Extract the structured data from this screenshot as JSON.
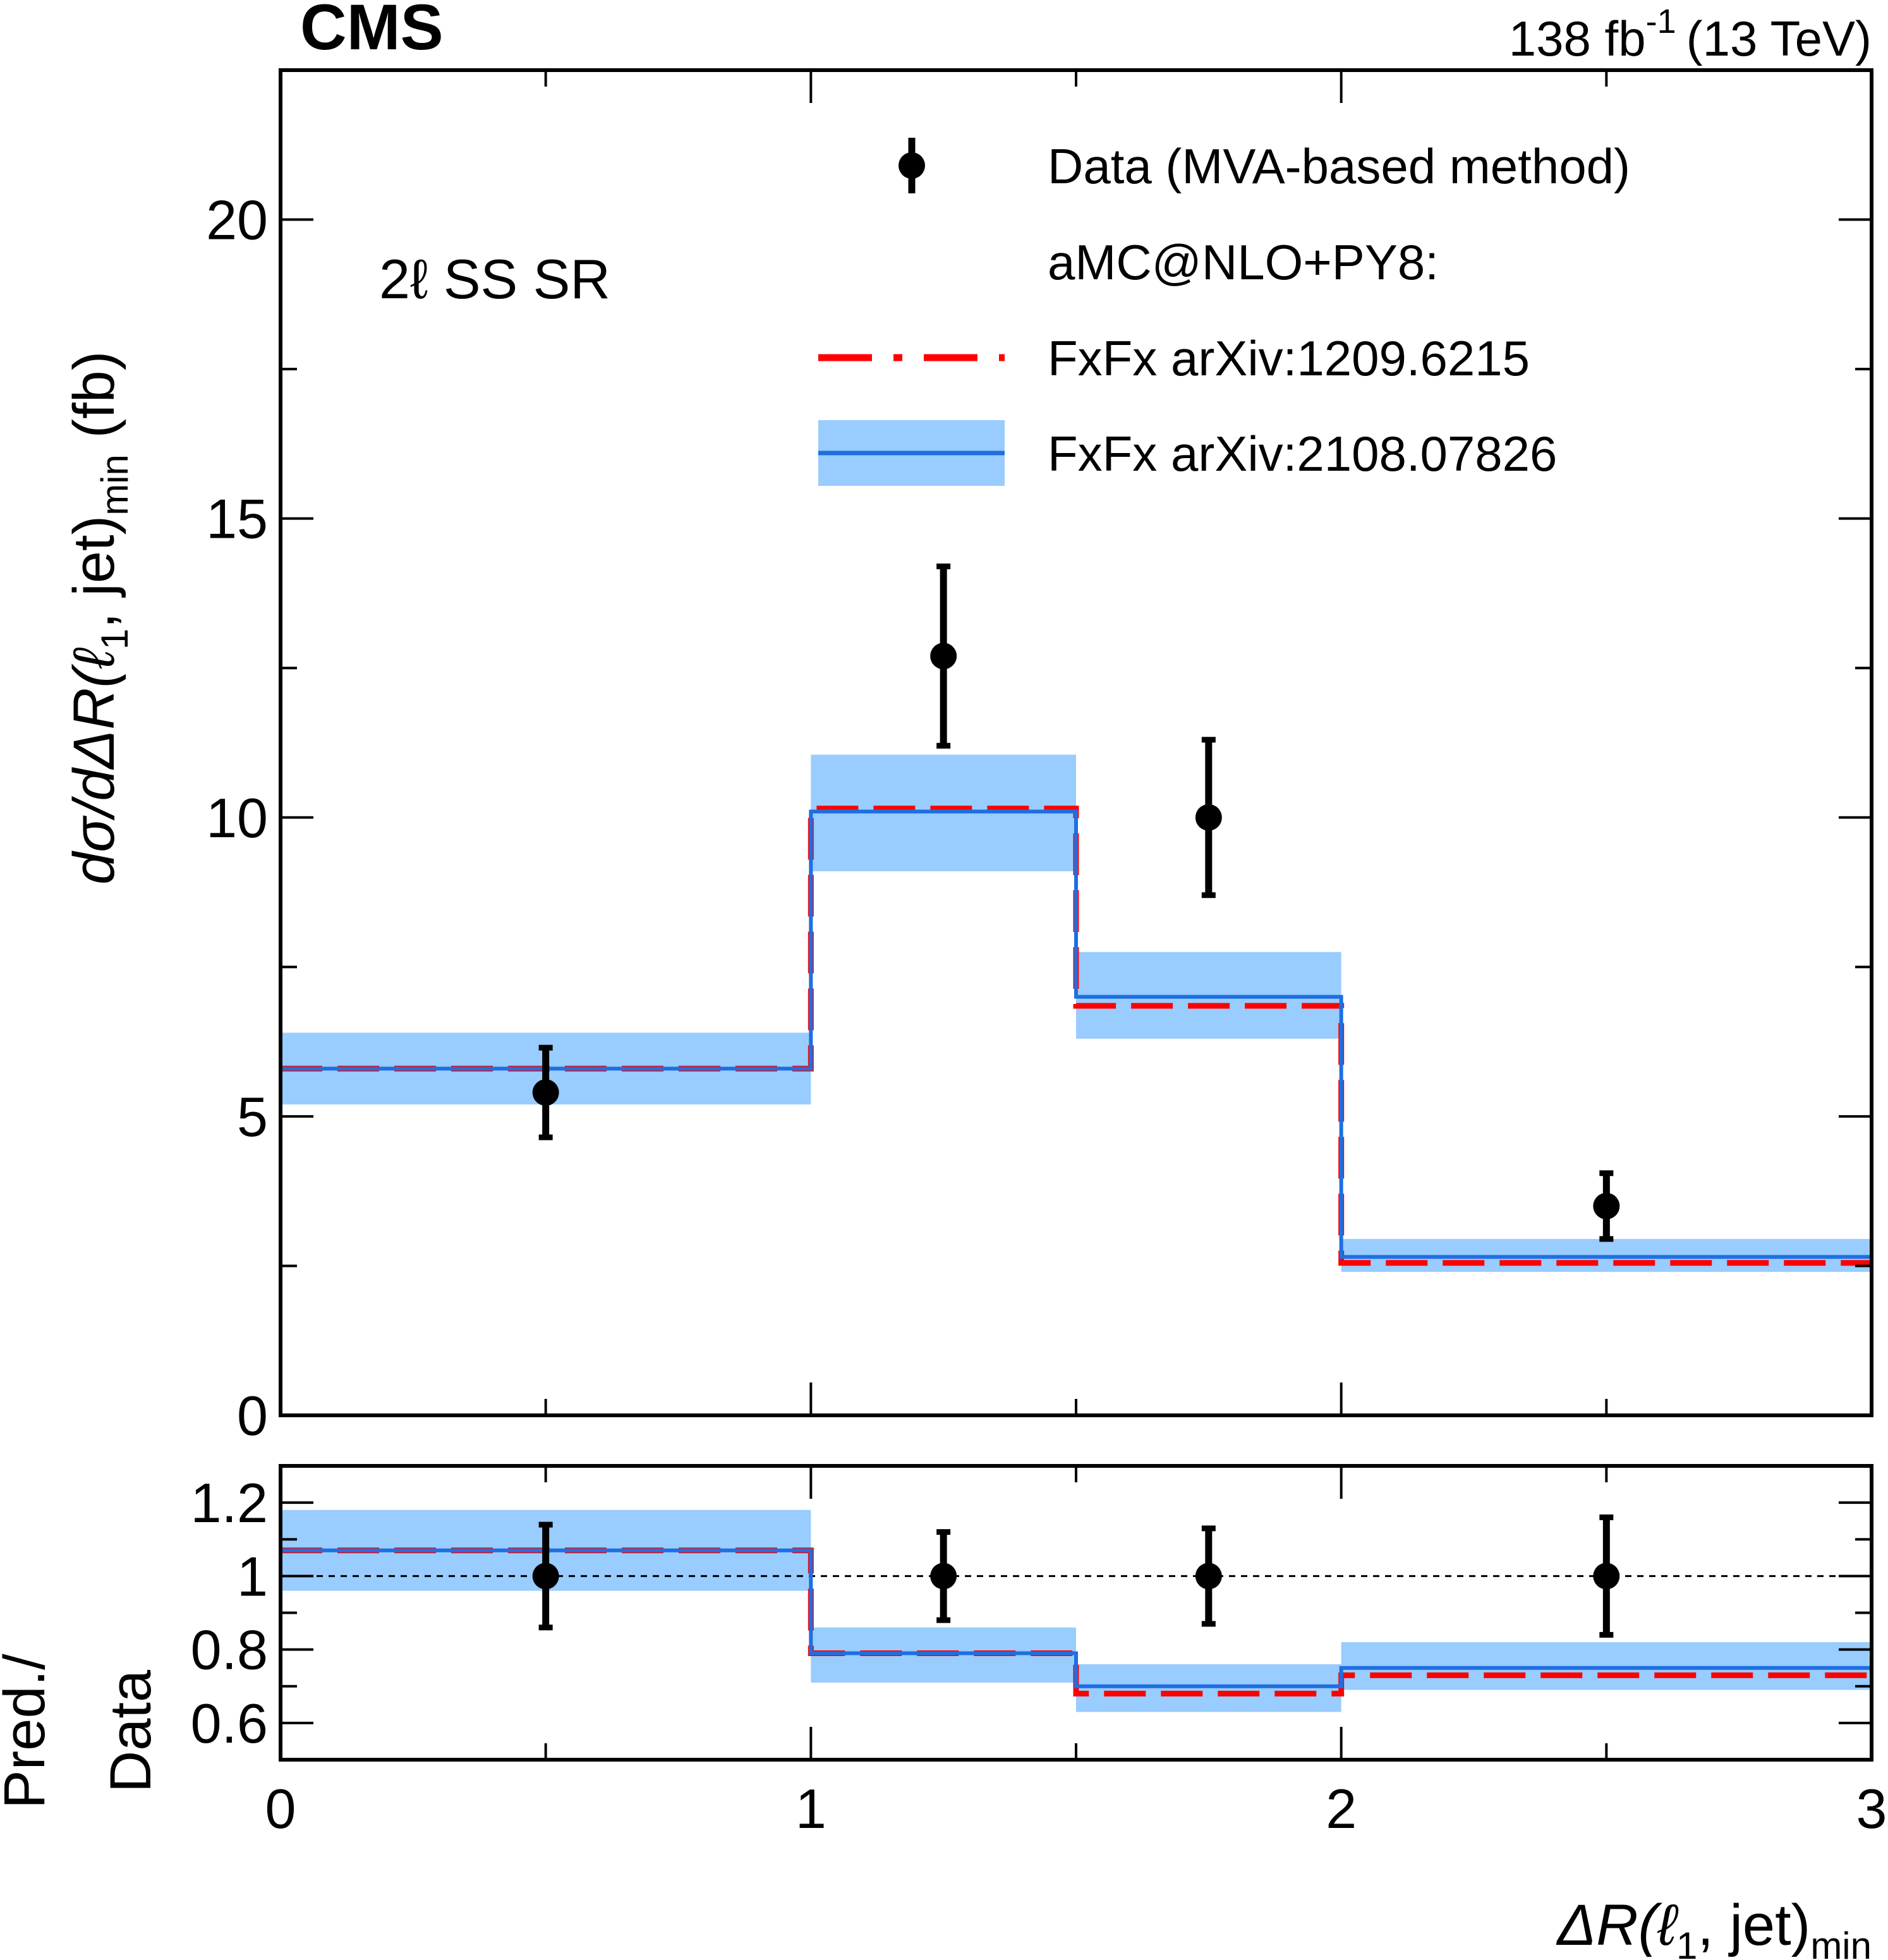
{
  "header": {
    "experiment": "CMS",
    "lumi_value": "138 fb",
    "lumi_exponent": "-1",
    "energy": "(13 TeV)"
  },
  "region_label": "2ℓ SS SR",
  "legend": {
    "data": "Data (MVA-based method)",
    "generator": "aMC@NLO+PY8:",
    "pred1": "FxFx arXiv:1209.6215",
    "pred2": "FxFx arXiv:2108.07826"
  },
  "colors": {
    "pred1": "#ff0000",
    "pred2": "#1e6fe0",
    "band": "#99ccff",
    "data": "#000000"
  },
  "chart_data": [
    {
      "type": "line",
      "title": "",
      "xlabel_parts": [
        "ΔR(ℓ",
        "1",
        ", jet)",
        "min"
      ],
      "ylabel_parts": [
        "dσ/dΔR(ℓ",
        "1",
        ", jet)",
        "min",
        " (fb)"
      ],
      "xlim": [
        0,
        3
      ],
      "ylim": [
        0,
        22.5
      ],
      "yticks": [
        0,
        5,
        10,
        15,
        20
      ],
      "bins": [
        [
          0,
          1
        ],
        [
          1,
          1.5
        ],
        [
          1.5,
          2
        ],
        [
          2,
          3
        ]
      ],
      "data": {
        "name": "Data (MVA-based method)",
        "x": [
          0.5,
          1.25,
          1.75,
          2.5
        ],
        "y": [
          5.4,
          12.7,
          10.0,
          3.5
        ],
        "err_lo": [
          0.75,
          1.5,
          1.3,
          0.55
        ],
        "err_hi": [
          0.75,
          1.5,
          1.3,
          0.55
        ]
      },
      "series": [
        {
          "name": "FxFx arXiv:1209.6215",
          "style": "dashed",
          "values": [
            5.8,
            10.15,
            6.85,
            2.55
          ]
        },
        {
          "name": "FxFx arXiv:2108.07826",
          "style": "solid",
          "values": [
            5.8,
            10.1,
            7.0,
            2.65
          ],
          "band_lo": [
            5.2,
            9.1,
            6.3,
            2.4
          ],
          "band_hi": [
            6.4,
            11.05,
            7.75,
            2.95
          ]
        }
      ]
    },
    {
      "type": "line",
      "title": "",
      "ylabel_lines": [
        "Pred./",
        "Data"
      ],
      "xlim": [
        0,
        3
      ],
      "ylim": [
        0.5,
        1.3
      ],
      "xticks": [
        0,
        1,
        2,
        3
      ],
      "yticks": [
        0.6,
        0.8,
        1,
        1.2
      ],
      "ytick_labels": [
        "0.6",
        "0.8",
        "1",
        "1.2"
      ],
      "reference": 1.0,
      "bins": [
        [
          0,
          1
        ],
        [
          1,
          1.5
        ],
        [
          1.5,
          2
        ],
        [
          2,
          3
        ]
      ],
      "data": {
        "name": "Data",
        "x": [
          0.5,
          1.25,
          1.75,
          2.5
        ],
        "y": [
          1.0,
          1.0,
          1.0,
          1.0
        ],
        "err_lo": [
          0.14,
          0.12,
          0.13,
          0.16
        ],
        "err_hi": [
          0.14,
          0.12,
          0.13,
          0.16
        ]
      },
      "series": [
        {
          "name": "FxFx arXiv:1209.6215",
          "style": "dashed",
          "values": [
            1.07,
            0.79,
            0.68,
            0.73
          ]
        },
        {
          "name": "FxFx arXiv:2108.07826",
          "style": "solid",
          "values": [
            1.07,
            0.79,
            0.7,
            0.75
          ],
          "band_lo": [
            0.96,
            0.71,
            0.63,
            0.69
          ],
          "band_hi": [
            1.18,
            0.86,
            0.76,
            0.82
          ]
        }
      ]
    }
  ]
}
